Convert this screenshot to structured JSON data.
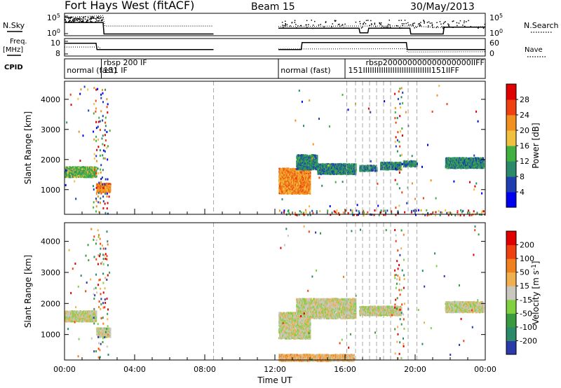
{
  "header": {
    "radar": "Fort Hays West (fitACF)",
    "beam": "Beam 15",
    "date": "30/May/2013"
  },
  "side_labels": {
    "nsky": "N.Sky",
    "freq": "Freq.",
    "freq_unit": "[MHz]",
    "cpid": "CPID",
    "nsearch": "N.Search",
    "nave": "Nave"
  },
  "chart_data": [
    {
      "type": "line",
      "panel": "noise",
      "y_ticks_left": [
        "10^5",
        "10^0"
      ],
      "y_ticks_right": [
        "10^5",
        "10^0"
      ],
      "series": [
        {
          "name": "N.Sky",
          "style": "solid",
          "segments": [
            [
              [
                0,
                2.3
              ],
              [
                2.2,
                2.3
              ],
              [
                2.25,
                0.3
              ],
              [
                8.5,
                0.3
              ]
            ],
            [
              [
                12.2,
                1.3
              ],
              [
                16.8,
                1.3
              ],
              [
                16.85,
                0.5
              ],
              [
                17.3,
                0.5
              ],
              [
                17.35,
                1.3
              ],
              [
                19.7,
                1.3
              ],
              [
                19.75,
                0.3
              ],
              [
                21.6,
                0.3
              ],
              [
                21.65,
                1.5
              ],
              [
                24,
                1.5
              ]
            ]
          ]
        },
        {
          "name": "N.Search",
          "style": "dotted",
          "segments": [
            [
              [
                0,
                3.2
              ],
              [
                2.2,
                3.5
              ],
              [
                2.3,
                1.7
              ],
              [
                8.5,
                1.7
              ]
            ],
            [
              [
                12.2,
                1.6
              ],
              [
                16.0,
                1.7
              ],
              [
                19.7,
                1.7
              ],
              [
                21.6,
                1.4
              ],
              [
                24,
                1.6
              ]
            ]
          ]
        }
      ]
    },
    {
      "type": "line",
      "panel": "frequency",
      "y_ticks_left": [
        "10",
        "8"
      ],
      "y_ticks_right": [
        "60",
        "0"
      ],
      "series": [
        {
          "name": "Freq.",
          "style": "solid",
          "segments": [
            [
              [
                0,
                10.2
              ],
              [
                1.8,
                10.2
              ],
              [
                1.85,
                9.1
              ],
              [
                8.5,
                9.1
              ]
            ],
            [
              [
                12.2,
                9.1
              ],
              [
                13.5,
                9.1
              ],
              [
                13.55,
                10.3
              ],
              [
                19.5,
                10.3
              ],
              [
                19.55,
                9.1
              ],
              [
                24,
                9.1
              ]
            ]
          ]
        },
        {
          "name": "Nave",
          "style": "dotted",
          "segments": [
            [
              [
                0,
                31
              ],
              [
                2.0,
                31
              ],
              [
                2.05,
                22
              ],
              [
                8.5,
                22
              ]
            ],
            [
              [
                12.2,
                24
              ],
              [
                19.5,
                25
              ],
              [
                19.55,
                14
              ],
              [
                24,
                15
              ]
            ]
          ]
        }
      ]
    },
    {
      "type": "table",
      "panel": "cpid",
      "labels": [
        {
          "t": 0.05,
          "row": 1,
          "text": "normal (fast)"
        },
        {
          "t": 2.15,
          "row": 1,
          "text": "151 IF"
        },
        {
          "t": 2.15,
          "row": 0,
          "text": "rbsp 200 IF"
        },
        {
          "t": 12.25,
          "row": 1,
          "text": "normal (fast)"
        },
        {
          "t": 16.1,
          "row": 1,
          "text": "151IIIIIIIIIIIIIIIIIIIIIIIIIIIIII151IIFF"
        },
        {
          "t": 17.1,
          "row": 0,
          "text": "rbsp200000000000000000IIFF"
        }
      ],
      "dividers": [
        0,
        2.1,
        12.2,
        16.0
      ]
    },
    {
      "type": "heatmap",
      "panel": "power",
      "ylabel": "Slant Range [km]",
      "xlim": [
        0,
        24
      ],
      "ylim": [
        180,
        4600
      ],
      "y_ticks": [
        1000,
        2000,
        3000,
        4000
      ],
      "colorbar": {
        "label": "Power [dB]",
        "ticks": [
          "4",
          "8",
          "12",
          "16",
          "20",
          "24",
          "28"
        ],
        "colors": [
          "#0000f0",
          "#1f3fb0",
          "#2a8a6a",
          "#40b040",
          "#f0c040",
          "#f09020",
          "#f04010",
          "#e00000"
        ]
      },
      "regions": [
        {
          "t0": 0.0,
          "t1": 1.8,
          "r0": 1450,
          "r1": 1800,
          "level": 3
        },
        {
          "t0": 1.8,
          "t1": 2.6,
          "r0": 950,
          "r1": 1250,
          "level": 5
        },
        {
          "t0": 1.6,
          "t1": 2.5,
          "r0": 250,
          "r1": 4500,
          "level": 1,
          "sparse": true
        },
        {
          "t0": 12.2,
          "t1": 14.0,
          "r0": 900,
          "r1": 1750,
          "level": 5
        },
        {
          "t0": 13.2,
          "t1": 14.4,
          "r0": 1700,
          "r1": 2200,
          "level": 2
        },
        {
          "t0": 14.4,
          "t1": 16.6,
          "r0": 1550,
          "r1": 1900,
          "level": 2
        },
        {
          "t0": 16.8,
          "t1": 17.8,
          "r0": 1650,
          "r1": 1850,
          "level": 2
        },
        {
          "t0": 18.0,
          "t1": 19.2,
          "r0": 1700,
          "r1": 1950,
          "level": 2
        },
        {
          "t0": 19.3,
          "t1": 20.1,
          "r0": 1800,
          "r1": 2000,
          "level": 2
        },
        {
          "t0": 21.7,
          "t1": 23.9,
          "r0": 1750,
          "r1": 2100,
          "level": 2
        },
        {
          "t0": 12.2,
          "t1": 24.0,
          "r0": 180,
          "r1": 380,
          "level": 2,
          "sparse": true
        },
        {
          "t0": 18.8,
          "t1": 19.3,
          "r0": 250,
          "r1": 4500,
          "level": 3,
          "sparse": true
        }
      ],
      "dashed_markers": [
        8.5,
        16.1,
        16.6,
        17.0,
        17.4,
        17.8,
        18.2,
        18.6,
        19.6,
        20.1
      ]
    },
    {
      "type": "heatmap",
      "panel": "velocity",
      "xlabel": "Time UT",
      "ylabel": "Slant Range [km]",
      "xlim": [
        0,
        24
      ],
      "ylim": [
        180,
        4600
      ],
      "y_ticks": [
        1000,
        2000,
        3000,
        4000
      ],
      "x_ticks": [
        "00:00",
        "04:00",
        "08:00",
        "12:00",
        "16:00",
        "20:00",
        "00:00"
      ],
      "colorbar": {
        "label": "Velocity [m s^-1]",
        "ticks": [
          "200",
          "100",
          "50",
          "15",
          "-15",
          "-50",
          "-100",
          "-200"
        ],
        "colors": [
          "#2a3aa8",
          "#2a8a6a",
          "#3a9a40",
          "#80d040",
          "#c8c8c0",
          "#f0b050",
          "#f08020",
          "#f04010",
          "#e00000"
        ]
      },
      "regions": [
        {
          "t0": 0.0,
          "t1": 1.8,
          "r0": 1450,
          "r1": 1800,
          "level": 4
        },
        {
          "t0": 1.8,
          "t1": 2.6,
          "r0": 950,
          "r1": 1250,
          "level": 4
        },
        {
          "t0": 1.6,
          "t1": 2.5,
          "r0": 250,
          "r1": 4500,
          "level": 8,
          "sparse": true
        },
        {
          "t0": 12.2,
          "t1": 14.0,
          "r0": 900,
          "r1": 1750,
          "level": 4
        },
        {
          "t0": 13.2,
          "t1": 16.6,
          "r0": 1550,
          "r1": 2200,
          "level": 4
        },
        {
          "t0": 16.8,
          "t1": 19.2,
          "r0": 1650,
          "r1": 1950,
          "level": 4
        },
        {
          "t0": 21.7,
          "t1": 23.9,
          "r0": 1750,
          "r1": 2100,
          "level": 4
        },
        {
          "t0": 12.2,
          "t1": 16.5,
          "r0": 180,
          "r1": 400,
          "level": 5
        },
        {
          "t0": 18.8,
          "t1": 19.4,
          "r0": 250,
          "r1": 4500,
          "level": 8,
          "sparse": true
        }
      ]
    }
  ]
}
